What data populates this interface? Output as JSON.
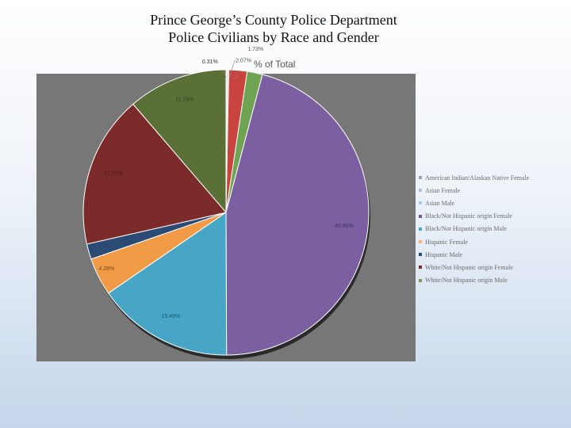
{
  "slide": {
    "title_line1": "Prince George’s County Police Department",
    "title_line2": "Police Civilians by Race and Gender"
  },
  "chart_data": {
    "type": "pie",
    "title": "% of Total",
    "categories": [
      "American Indian/Alaskan Native Female",
      "Asian Female",
      "Asian Male",
      "Black/Not Hispanic origin Female",
      "Black/Not Hispanic origin Male",
      "Hispanic Female",
      "Hispanic Male",
      "White/Not Hispanic origin Female",
      "White/Not Hispanic origin Male"
    ],
    "values": [
      0.31,
      1.73,
      2.07,
      45.86,
      15.49,
      4.28,
      1.74,
      17.29,
      11.29
    ],
    "labels": [
      "0.31%",
      "1.73%",
      "2.07%",
      "45.86%",
      "15.49%",
      "4.28%",
      "",
      "17.29%",
      "11.29%"
    ],
    "slice_order": [
      0,
      2,
      1,
      3,
      4,
      5,
      6,
      7,
      8
    ],
    "colors": [
      "#e8e8e8",
      "#6fa552",
      "#c8443e",
      "#7b5fa0",
      "#47a6c6",
      "#f19b47",
      "#2c4b74",
      "#7b2c2a",
      "#5a7036"
    ],
    "legend_colors": [
      "#9aa5b5",
      "#b5c2d3",
      "#9fd0e6",
      "#6d5a9a",
      "#47a6c6",
      "#f0b080",
      "#2c4b74",
      "#7b2c2a",
      "#8a9560"
    ],
    "legend_position": "right",
    "plot_background": "#777777"
  }
}
